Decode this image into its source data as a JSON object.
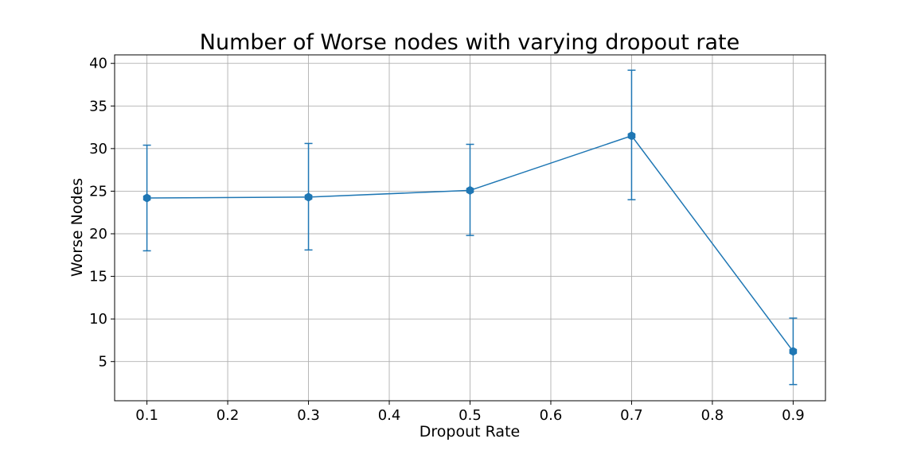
{
  "chart_data": {
    "type": "line",
    "title": "Number of Worse nodes with varying dropout rate",
    "xlabel": "Dropout Rate",
    "ylabel": "Worse Nodes",
    "xlim": [
      0.06,
      0.94
    ],
    "ylim": [
      0.4,
      41
    ],
    "xticks": [
      0.1,
      0.2,
      0.3,
      0.4,
      0.5,
      0.6,
      0.7,
      0.8,
      0.9
    ],
    "xtick_labels": [
      "0.1",
      "0.2",
      "0.3",
      "0.4",
      "0.5",
      "0.6",
      "0.7",
      "0.8",
      "0.9"
    ],
    "yticks": [
      5,
      10,
      15,
      20,
      25,
      30,
      35,
      40
    ],
    "ytick_labels": [
      "5",
      "10",
      "15",
      "20",
      "25",
      "30",
      "35",
      "40"
    ],
    "grid": true,
    "color": "#1f77b4",
    "series": [
      {
        "x": [
          0.1,
          0.3,
          0.5,
          0.7,
          0.9
        ],
        "y": [
          24.2,
          24.3,
          25.1,
          31.5,
          6.2
        ],
        "yerr_low": [
          18.0,
          18.1,
          19.8,
          24.0,
          2.3
        ],
        "yerr_high": [
          30.4,
          30.6,
          30.5,
          39.2,
          10.1
        ]
      }
    ]
  }
}
